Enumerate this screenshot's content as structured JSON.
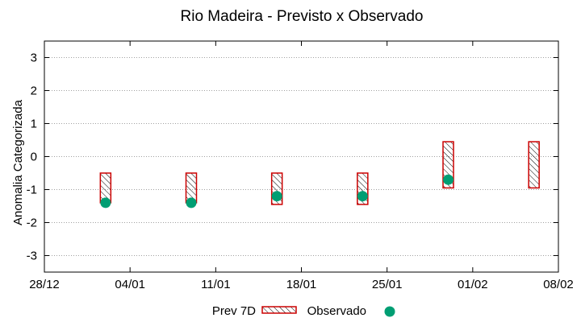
{
  "chart_data": {
    "type": "bar",
    "title": "Rio Madeira - Previsto x Observado",
    "xlabel": "",
    "ylabel": "Anomalia Categorizada",
    "x_ticks": [
      "28/12",
      "04/01",
      "11/01",
      "18/01",
      "25/01",
      "01/02",
      "08/02"
    ],
    "y_ticks": [
      "3",
      "2",
      "1",
      "0",
      "-1",
      "-2",
      "-3"
    ],
    "xlim": [
      "28/12",
      "08/02"
    ],
    "ylim": [
      -3.5,
      3.5
    ],
    "grid": "horizontal dotted",
    "legend_position": "bottom-center",
    "series": [
      {
        "name": "Prev 7D",
        "kind": "range-box",
        "color": "#cc0000",
        "points": [
          {
            "date": "02/01",
            "low": -1.4,
            "high": -0.5
          },
          {
            "date": "09/01",
            "low": -1.4,
            "high": -0.5
          },
          {
            "date": "16/01",
            "low": -1.45,
            "high": -0.5
          },
          {
            "date": "23/01",
            "low": -1.45,
            "high": -0.5
          },
          {
            "date": "30/01",
            "low": -0.95,
            "high": 0.45
          },
          {
            "date": "06/02",
            "low": -0.95,
            "high": 0.45
          }
        ]
      },
      {
        "name": "Observado",
        "kind": "scatter",
        "color": "#009e73",
        "points": [
          {
            "date": "02/01",
            "value": -1.4
          },
          {
            "date": "09/01",
            "value": -1.4
          },
          {
            "date": "16/01",
            "value": -1.2
          },
          {
            "date": "23/01",
            "value": -1.2
          },
          {
            "date": "30/01",
            "value": -0.7
          }
        ]
      }
    ]
  }
}
